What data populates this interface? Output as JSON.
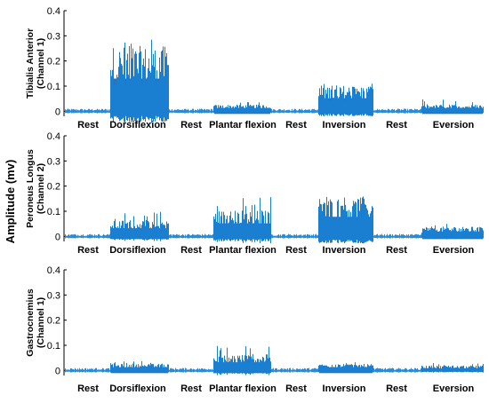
{
  "figure": {
    "shared_ylabel": "Amplitude (mv)"
  },
  "colors": {
    "signal": "#1a7fd0",
    "signal_dark": "#0e63b5",
    "baseline": "#2a8bd6",
    "axis": "#000000"
  },
  "chart_data": [
    {
      "type": "area",
      "title": "",
      "ylabel_line1": "Tibialis Anterior",
      "ylabel_line2": "(Channel 1)",
      "ylim": [
        -0.02,
        0.4
      ],
      "yticks": [
        "0",
        "0.1",
        "0.2",
        "0.3",
        "0.4"
      ],
      "ytick_values": [
        0,
        0.1,
        0.2,
        0.3,
        0.4
      ],
      "grid": false,
      "legend": "none",
      "categories": [
        "Rest",
        "Dorsiflexion",
        "Rest",
        "Plantar flexion",
        "Rest",
        "Inversion",
        "Rest",
        "Eversion"
      ],
      "series": [
        {
          "values_peak_amplitude_mv": [
            0.01,
            0.32,
            0.01,
            0.04,
            0.01,
            0.11,
            0.01,
            0.05
          ],
          "values_typical_amplitude_mv": [
            0.005,
            0.2,
            0.005,
            0.02,
            0.004,
            0.08,
            0.005,
            0.02
          ]
        }
      ]
    },
    {
      "type": "area",
      "title": "",
      "ylabel_line1": "Peroneus Longus",
      "ylabel_line2": "(Channel 2)",
      "ylim": [
        -0.02,
        0.4
      ],
      "yticks": [
        "0",
        "0.1",
        "0.2",
        "0.3",
        "0.4"
      ],
      "ytick_values": [
        0,
        0.1,
        0.2,
        0.3,
        0.4
      ],
      "grid": false,
      "legend": "none",
      "categories": [
        "Rest",
        "Dorsiflexion",
        "Rest",
        "Plantar flexion",
        "Rest",
        "Inversion",
        "Rest",
        "Eversion"
      ],
      "series": [
        {
          "values_peak_amplitude_mv": [
            0.01,
            0.1,
            0.01,
            0.16,
            0.01,
            0.16,
            0.01,
            0.05
          ],
          "values_typical_amplitude_mv": [
            0.004,
            0.05,
            0.004,
            0.08,
            0.004,
            0.12,
            0.005,
            0.03
          ]
        }
      ]
    },
    {
      "type": "area",
      "title": "",
      "ylabel_line1": "Gastrocnemius",
      "ylabel_line2": "(Channel 1)",
      "ylim": [
        -0.02,
        0.4
      ],
      "yticks": [
        "0",
        "0.1",
        "0.2",
        "0.3",
        "0.4"
      ],
      "ytick_values": [
        0,
        0.1,
        0.2,
        0.3,
        0.4
      ],
      "grid": false,
      "legend": "none",
      "categories": [
        "Rest",
        "Dorsiflexion",
        "Rest",
        "Plantar flexion",
        "Rest",
        "Inversion",
        "Rest",
        "Eversion"
      ],
      "series": [
        {
          "values_peak_amplitude_mv": [
            0.01,
            0.04,
            0.01,
            0.1,
            0.01,
            0.04,
            0.01,
            0.03
          ],
          "values_typical_amplitude_mv": [
            0.004,
            0.02,
            0.004,
            0.05,
            0.004,
            0.02,
            0.004,
            0.015
          ]
        }
      ]
    }
  ]
}
